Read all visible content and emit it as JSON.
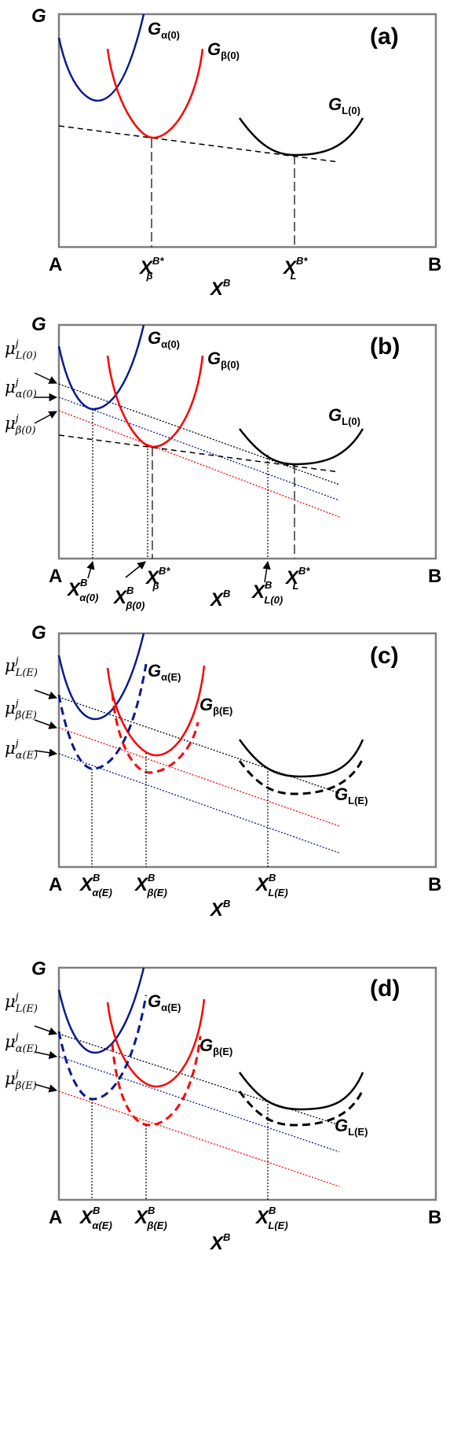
{
  "axis": {
    "y": "G",
    "x": "X",
    "x_sup": "B",
    "left": "A",
    "right": "B"
  },
  "panels": {
    "a": {
      "label": "(a)",
      "curves": {
        "alpha": "G",
        "alpha_sub": "α(0)",
        "beta": "G",
        "beta_sub": "β(0)",
        "liquid": "G",
        "liquid_sub": "L(0)"
      },
      "ticks": {
        "beta_star_base": "X",
        "beta_star_sup": "B*",
        "beta_star_sub": "β",
        "l_star_base": "X",
        "l_star_sup": "B*",
        "l_star_sub": "L"
      }
    },
    "b": {
      "label": "(b)",
      "curves": {
        "alpha": "G",
        "alpha_sub": "α(0)",
        "beta": "G",
        "beta_sub": "β(0)",
        "liquid": "G",
        "liquid_sub": "L(0)"
      },
      "mu": [
        {
          "base": "μ",
          "sup": "j",
          "sub": "L(0)"
        },
        {
          "base": "μ",
          "sup": "j",
          "sub": "α(0)"
        },
        {
          "base": "μ",
          "sup": "j",
          "sub": "β(0)"
        }
      ],
      "ticks": {
        "x_alpha": {
          "base": "X",
          "sup": "B",
          "sub": "α(0)"
        },
        "x_beta": {
          "base": "X",
          "sup": "B",
          "sub": "β(0)"
        },
        "x_beta_star": {
          "base": "X",
          "sup": "B*",
          "sub": "β"
        },
        "x_l": {
          "base": "X",
          "sup": "B",
          "sub": "L(0)"
        },
        "x_l_star": {
          "base": "X",
          "sup": "B*",
          "sub": "L"
        }
      }
    },
    "c": {
      "label": "(c)",
      "curves": {
        "alpha": "G",
        "alpha_sub": "α(E)",
        "beta": "G",
        "beta_sub": "β(E)",
        "liquid": "G",
        "liquid_sub": "L(E)"
      },
      "mu": [
        {
          "base": "μ",
          "sup": "j",
          "sub": "L(E)"
        },
        {
          "base": "μ",
          "sup": "j",
          "sub": "β(E)"
        },
        {
          "base": "μ",
          "sup": "j",
          "sub": "α(E)"
        }
      ],
      "ticks": {
        "x_alpha": {
          "base": "X",
          "sup": "B",
          "sub": "α(E)"
        },
        "x_beta": {
          "base": "X",
          "sup": "B",
          "sub": "β(E)"
        },
        "x_l": {
          "base": "X",
          "sup": "B",
          "sub": "L(E)"
        }
      }
    },
    "d": {
      "label": "(d)",
      "curves": {
        "alpha": "G",
        "alpha_sub": "α(E)",
        "beta": "G",
        "beta_sub": "β(E)",
        "liquid": "G",
        "liquid_sub": "L(E)"
      },
      "mu": [
        {
          "base": "μ",
          "sup": "j",
          "sub": "L(E)"
        },
        {
          "base": "μ",
          "sup": "j",
          "sub": "α(E)"
        },
        {
          "base": "μ",
          "sup": "j",
          "sub": "β(E)"
        }
      ],
      "ticks": {
        "x_alpha": {
          "base": "X",
          "sup": "B",
          "sub": "α(E)"
        },
        "x_beta": {
          "base": "X",
          "sup": "B",
          "sub": "β(E)"
        },
        "x_l": {
          "base": "X",
          "sup": "B",
          "sub": "L(E)"
        }
      }
    }
  },
  "colors": {
    "alpha": "#0a1a8c",
    "beta": "#ff0000",
    "liquid": "#000000",
    "axis": "#7f7f7f"
  }
}
